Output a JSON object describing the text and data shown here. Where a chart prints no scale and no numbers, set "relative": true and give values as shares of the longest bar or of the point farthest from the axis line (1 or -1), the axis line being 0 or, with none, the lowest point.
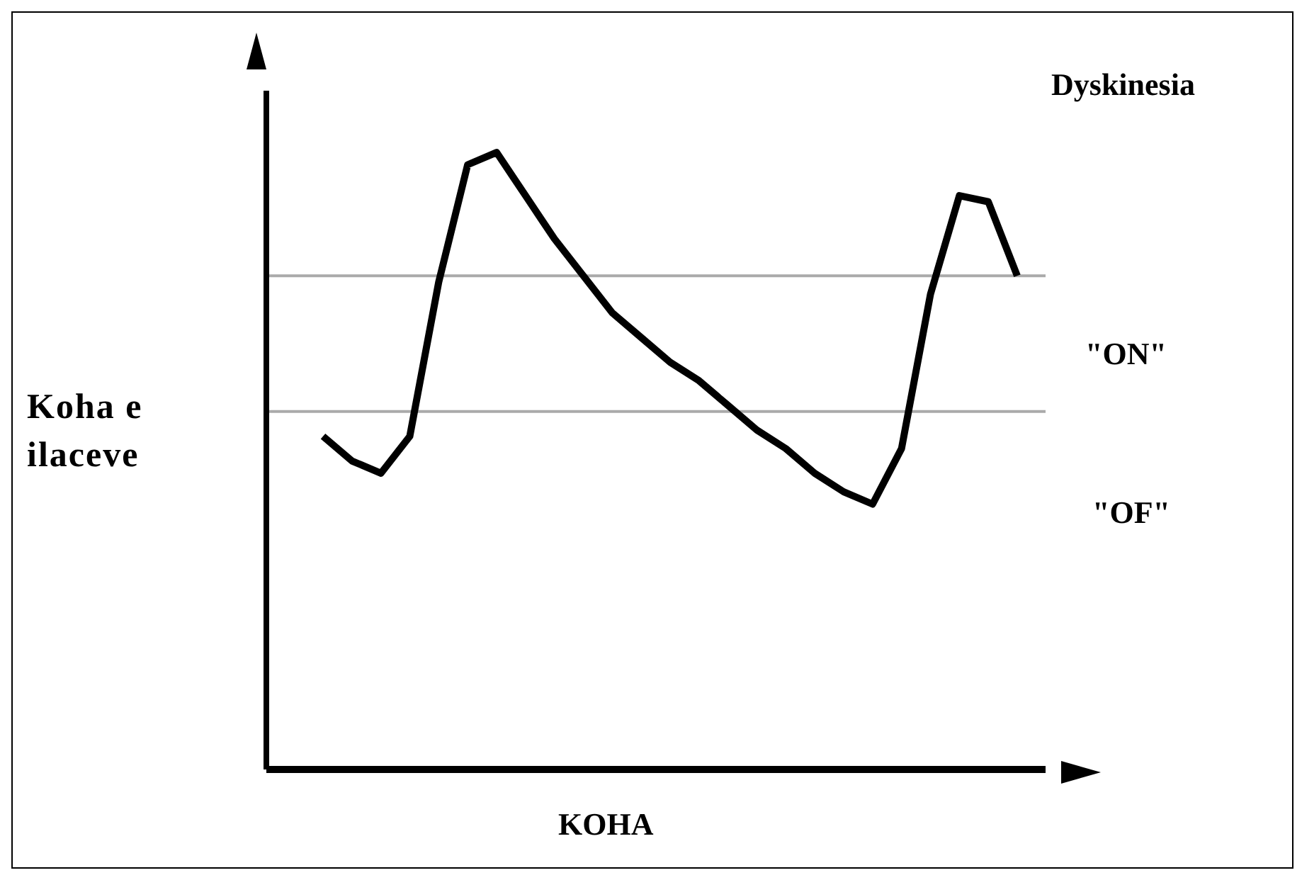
{
  "chart_data": {
    "type": "line",
    "relative": true,
    "xlabel": "KOHA",
    "ylabel": "Koha e ilaceve",
    "categories": [
      null,
      null,
      null,
      null,
      null,
      null,
      null,
      null,
      null,
      null,
      null,
      null,
      null,
      null,
      null,
      null,
      null,
      null,
      null,
      null,
      null,
      null,
      null,
      null,
      null
    ],
    "series": [
      {
        "color": "#000000",
        "values": [
          0.54,
          0.5,
          0.48,
          0.54,
          0.79,
          0.98,
          1,
          0.93,
          0.86,
          0.8,
          0.74,
          0.7,
          0.66,
          0.63,
          0.59,
          0.55,
          0.52,
          0.48,
          0.45,
          0.43,
          0.52,
          0.77,
          0.93,
          0.92,
          0.8
        ]
      }
    ],
    "ref_lines": [
      {
        "axis": "y",
        "value": 0.8,
        "color": "#aaaaaa"
      },
      {
        "axis": "y",
        "value": 0.58,
        "color": "#aaaaaa"
      }
    ],
    "annotations": [
      "Dyskinesia",
      "\"ON\"",
      "\"OF\""
    ],
    "marker": "none",
    "line_style": "solid",
    "grid": false,
    "legend": false
  }
}
